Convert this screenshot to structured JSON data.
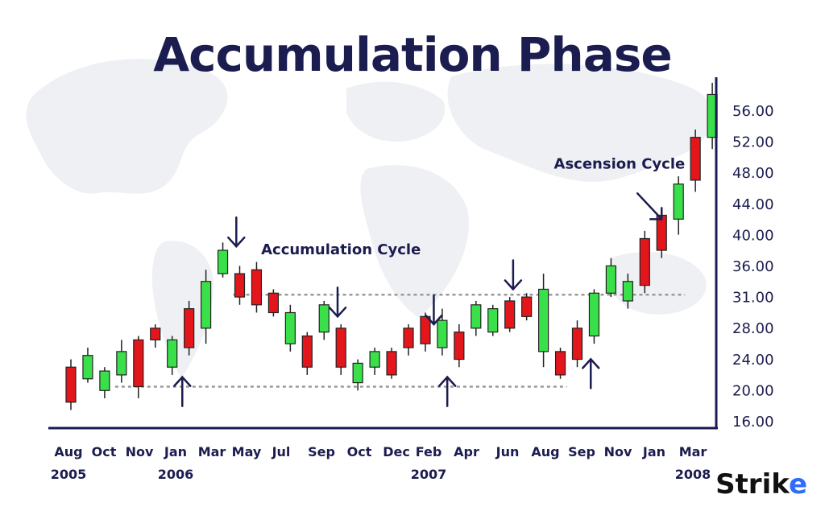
{
  "title": "Accumulation Phase",
  "logo": {
    "text_main": "Strik",
    "text_accent": "e"
  },
  "colors": {
    "up": "#39e04a",
    "down": "#e3161c",
    "axis": "#1b1c4f",
    "level_line": "#9a9a9a",
    "background_map": "#f1f2f5"
  },
  "chart_data": {
    "type": "candlestick",
    "title": "Accumulation Phase",
    "yaxis_position": "right",
    "ylim": [
      16,
      60
    ],
    "y_ticks": [
      "16.00",
      "20.00",
      "24.00",
      "28.00",
      "31.00",
      "36.00",
      "40.00",
      "44.00",
      "48.00",
      "52.00",
      "56.00"
    ],
    "x_tick_labels": [
      "Aug",
      "Oct",
      "Nov",
      "Jan",
      "Mar",
      "May",
      "Jul",
      "Sep",
      "Oct",
      "Dec",
      "Feb",
      "Apr",
      "Jun",
      "Aug",
      "Sep",
      "Nov",
      "Jan",
      "Mar"
    ],
    "x_year_labels": [
      {
        "text": "2005",
        "month_index": 0
      },
      {
        "text": "2006",
        "month_index": 3
      },
      {
        "text": "2007",
        "month_index": 10
      },
      {
        "text": "2008",
        "month_index": 17
      }
    ],
    "candles": [
      {
        "o": 23,
        "h": 24,
        "l": 17.5,
        "c": 18.5
      },
      {
        "o": 21.5,
        "h": 25.5,
        "l": 21,
        "c": 24.5
      },
      {
        "o": 20,
        "h": 23,
        "l": 19,
        "c": 22.5
      },
      {
        "o": 22,
        "h": 26.5,
        "l": 21,
        "c": 25
      },
      {
        "o": 26.5,
        "h": 27,
        "l": 19,
        "c": 20.5
      },
      {
        "o": 28,
        "h": 28.5,
        "l": 25.5,
        "c": 26.5
      },
      {
        "o": 23,
        "h": 27,
        "l": 22,
        "c": 26.5
      },
      {
        "o": 30.5,
        "h": 31.5,
        "l": 24.5,
        "c": 25.5
      },
      {
        "o": 28,
        "h": 35.5,
        "l": 26,
        "c": 34
      },
      {
        "o": 35,
        "h": 39,
        "l": 34.5,
        "c": 38
      },
      {
        "o": 35,
        "h": 36,
        "l": 31,
        "c": 32
      },
      {
        "o": 35.5,
        "h": 36.5,
        "l": 30,
        "c": 31
      },
      {
        "o": 32.5,
        "h": 33,
        "l": 29.5,
        "c": 30
      },
      {
        "o": 26,
        "h": 31,
        "l": 25,
        "c": 30
      },
      {
        "o": 27,
        "h": 27.5,
        "l": 22,
        "c": 23
      },
      {
        "o": 27.5,
        "h": 31.5,
        "l": 26.5,
        "c": 31
      },
      {
        "o": 28,
        "h": 28.5,
        "l": 22,
        "c": 23
      },
      {
        "o": 21,
        "h": 24,
        "l": 20,
        "c": 23.5
      },
      {
        "o": 23,
        "h": 25.5,
        "l": 22,
        "c": 25
      },
      {
        "o": 25,
        "h": 25.5,
        "l": 21.5,
        "c": 22
      },
      {
        "o": 28,
        "h": 28.5,
        "l": 24.5,
        "c": 25.5
      },
      {
        "o": 29.5,
        "h": 30,
        "l": 25,
        "c": 26
      },
      {
        "o": 25.5,
        "h": 30.5,
        "l": 24.5,
        "c": 29
      },
      {
        "o": 27.5,
        "h": 28.5,
        "l": 23,
        "c": 24
      },
      {
        "o": 28,
        "h": 31.5,
        "l": 27,
        "c": 31
      },
      {
        "o": 27.5,
        "h": 31,
        "l": 27,
        "c": 30.5
      },
      {
        "o": 31.5,
        "h": 32,
        "l": 27.5,
        "c": 28
      },
      {
        "o": 32,
        "h": 32.5,
        "l": 29,
        "c": 29.5
      },
      {
        "o": 25,
        "h": 35,
        "l": 23,
        "c": 33
      },
      {
        "o": 25,
        "h": 25.5,
        "l": 21.5,
        "c": 22
      },
      {
        "o": 28,
        "h": 29,
        "l": 23,
        "c": 24
      },
      {
        "o": 27,
        "h": 33,
        "l": 26,
        "c": 32.5
      },
      {
        "o": 32.5,
        "h": 37,
        "l": 32,
        "c": 36
      },
      {
        "o": 31.5,
        "h": 35,
        "l": 30.5,
        "c": 34
      },
      {
        "o": 39.5,
        "h": 40.5,
        "l": 32.5,
        "c": 33.5
      },
      {
        "o": 42.5,
        "h": 43.5,
        "l": 37,
        "c": 38
      },
      {
        "o": 42,
        "h": 47.5,
        "l": 40,
        "c": 46.5
      },
      {
        "o": 52.5,
        "h": 53.5,
        "l": 45.5,
        "c": 47
      },
      {
        "o": 52.5,
        "h": 59.5,
        "l": 51,
        "c": 58
      }
    ],
    "levels": [
      {
        "y": 32.3,
        "from_candle": 10,
        "to_candle": 36
      },
      {
        "y": 20.5,
        "from_candle": 3,
        "to_candle": 29
      }
    ],
    "annotations": [
      {
        "text": "Accumulation Cycle",
        "type": "label",
        "x_candle": 16,
        "y": 37.5
      },
      {
        "text": "Ascension Cycle",
        "type": "label",
        "x_candle": 32.5,
        "y": 48.5
      }
    ],
    "arrows": [
      {
        "dir": "down",
        "x_candle": 9.8,
        "y": 38.5
      },
      {
        "dir": "up",
        "x_candle": 6.6,
        "y": 18
      },
      {
        "dir": "down",
        "x_candle": 15.8,
        "y": 29.5
      },
      {
        "dir": "down",
        "x_candle": 21.5,
        "y": 28.5
      },
      {
        "dir": "up",
        "x_candle": 22.3,
        "y": 18
      },
      {
        "dir": "down",
        "x_candle": 26.2,
        "y": 33
      },
      {
        "dir": "up",
        "x_candle": 30.8,
        "y": 20.3
      },
      {
        "dir": "diag",
        "x_candle": 35,
        "y": 42
      }
    ]
  }
}
